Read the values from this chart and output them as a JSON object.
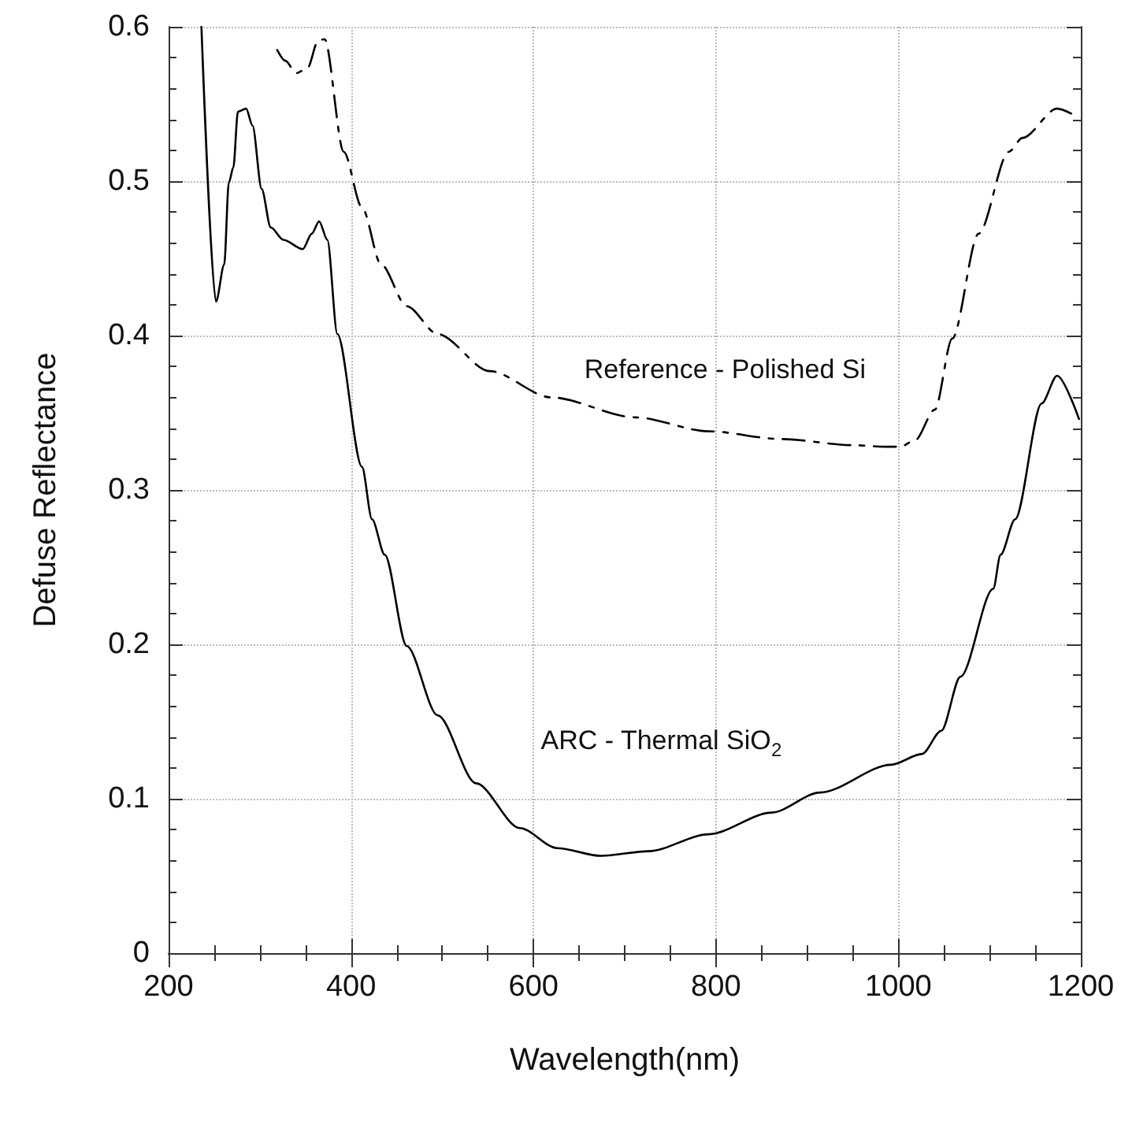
{
  "chart_data": {
    "type": "line",
    "xlabel": "Wavelength(nm)",
    "ylabel": "Defuse Reflectance",
    "series": [
      {
        "color": "#000000",
        "line_style": "solid",
        "x": [
          236,
          252,
          261,
          266,
          271,
          276,
          285,
          292,
          302,
          312,
          326,
          347,
          357,
          365,
          374,
          385,
          412,
          423,
          437,
          461,
          495,
          537,
          585,
          626,
          674,
          726,
          792,
          861,
          914,
          992,
          1026,
          1047,
          1068,
          1104,
          1112,
          1128,
          1157,
          1174,
          1198
        ],
        "values": [
          0.6,
          0.422,
          0.446,
          0.499,
          0.509,
          0.545,
          0.547,
          0.536,
          0.495,
          0.47,
          0.462,
          0.456,
          0.466,
          0.474,
          0.462,
          0.401,
          0.315,
          0.281,
          0.258,
          0.199,
          0.154,
          0.11,
          0.081,
          0.068,
          0.063,
          0.066,
          0.077,
          0.091,
          0.104,
          0.122,
          0.129,
          0.144,
          0.179,
          0.236,
          0.258,
          0.281,
          0.356,
          0.374,
          0.346
        ]
      },
      {
        "color": "#000000",
        "line_style": "dashed",
        "x": [
          319,
          328,
          340,
          352,
          364,
          371,
          392,
          412,
          433,
          461,
          495,
          552,
          619,
          712,
          792,
          871,
          950,
          985,
          1002,
          1018,
          1040,
          1059,
          1088,
          1121,
          1136,
          1174,
          1198
        ],
        "values": [
          0.585,
          0.578,
          0.57,
          0.573,
          0.591,
          0.592,
          0.519,
          0.483,
          0.446,
          0.419,
          0.401,
          0.377,
          0.36,
          0.347,
          0.338,
          0.333,
          0.329,
          0.328,
          0.328,
          0.332,
          0.352,
          0.398,
          0.466,
          0.519,
          0.528,
          0.547,
          0.541
        ]
      }
    ],
    "annotations": [
      "Reference - Polished Si",
      "ARC - Thermal SiO$_{2}$"
    ],
    "xlim": [
      200,
      1200
    ],
    "xticks": [
      200,
      400,
      600,
      800,
      1000,
      1200
    ],
    "ylim": [
      0,
      0.6
    ],
    "yticks": [
      0,
      0.1,
      0.2,
      0.3,
      0.4,
      0.5,
      0.6
    ],
    "grid": true
  }
}
